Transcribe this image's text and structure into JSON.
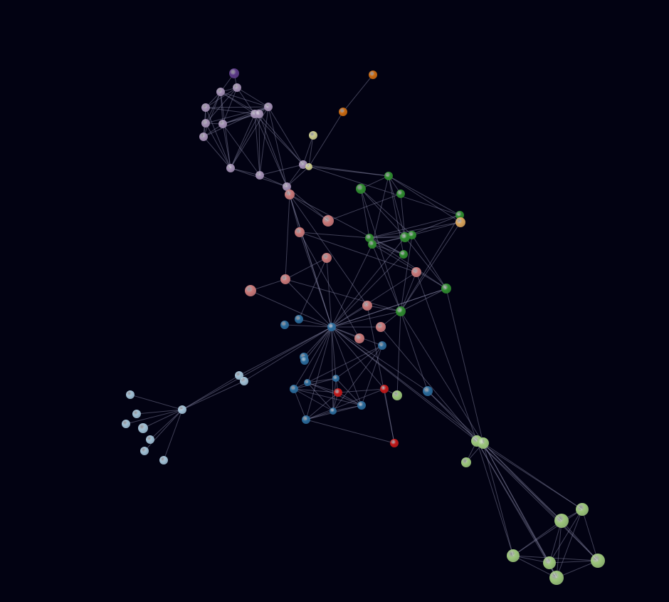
{
  "colors": {
    "background": "#020212",
    "edge": "#8a8aa8",
    "groups": {
      "lavender": "#a28fb3",
      "purple": "#5b3a86",
      "orange": "#c8680f",
      "yellow": "#c9c98a",
      "salmon": "#c87878",
      "green": "#2e8a2e",
      "tan": "#d7a25a",
      "blue": "#2a6a9a",
      "red": "#c01818",
      "lime": "#9bc57a",
      "lightblue": "#9fbfd4"
    }
  },
  "graph": {
    "nodes": [
      {
        "id": 0,
        "group": "purple"
      },
      {
        "id": 1,
        "group": "lavender"
      },
      {
        "id": 2,
        "group": "lavender"
      },
      {
        "id": 3,
        "group": "lavender"
      },
      {
        "id": 4,
        "group": "lavender"
      },
      {
        "id": 5,
        "group": "lavender"
      },
      {
        "id": 6,
        "group": "lavender"
      },
      {
        "id": 7,
        "group": "lavender"
      },
      {
        "id": 8,
        "group": "lavender"
      },
      {
        "id": 9,
        "group": "lavender"
      },
      {
        "id": 10,
        "group": "lavender"
      },
      {
        "id": 11,
        "group": "lavender"
      },
      {
        "id": 12,
        "group": "lavender"
      },
      {
        "id": 13,
        "group": "lavender"
      },
      {
        "id": 14,
        "group": "orange"
      },
      {
        "id": 15,
        "group": "orange"
      },
      {
        "id": 16,
        "group": "yellow"
      },
      {
        "id": 17,
        "group": "yellow"
      },
      {
        "id": 18,
        "group": "salmon"
      },
      {
        "id": 19,
        "group": "green"
      },
      {
        "id": 20,
        "group": "green"
      },
      {
        "id": 21,
        "group": "green"
      },
      {
        "id": 22,
        "group": "salmon"
      },
      {
        "id": 23,
        "group": "salmon"
      },
      {
        "id": 24,
        "group": "green"
      },
      {
        "id": 25,
        "group": "tan"
      },
      {
        "id": 26,
        "group": "green"
      },
      {
        "id": 27,
        "group": "green"
      },
      {
        "id": 28,
        "group": "green"
      },
      {
        "id": 29,
        "group": "green"
      },
      {
        "id": 30,
        "group": "green"
      },
      {
        "id": 31,
        "group": "salmon"
      },
      {
        "id": 32,
        "group": "salmon"
      },
      {
        "id": 33,
        "group": "salmon"
      },
      {
        "id": 34,
        "group": "salmon"
      },
      {
        "id": 35,
        "group": "green"
      },
      {
        "id": 36,
        "group": "salmon"
      },
      {
        "id": 37,
        "group": "green"
      },
      {
        "id": 38,
        "group": "salmon"
      },
      {
        "id": 39,
        "group": "salmon"
      },
      {
        "id": 40,
        "group": "blue"
      },
      {
        "id": 41,
        "group": "blue"
      },
      {
        "id": 42,
        "group": "blue"
      },
      {
        "id": 43,
        "group": "blue"
      },
      {
        "id": 44,
        "group": "blue"
      },
      {
        "id": 45,
        "group": "blue"
      },
      {
        "id": 46,
        "group": "blue"
      },
      {
        "id": 47,
        "group": "blue"
      },
      {
        "id": 48,
        "group": "blue"
      },
      {
        "id": 49,
        "group": "red"
      },
      {
        "id": 50,
        "group": "red"
      },
      {
        "id": 51,
        "group": "lime"
      },
      {
        "id": 52,
        "group": "blue"
      },
      {
        "id": 53,
        "group": "blue"
      },
      {
        "id": 54,
        "group": "blue"
      },
      {
        "id": 55,
        "group": "blue"
      },
      {
        "id": 56,
        "group": "red"
      },
      {
        "id": 57,
        "group": "lightblue"
      },
      {
        "id": 58,
        "group": "lightblue"
      },
      {
        "id": 59,
        "group": "lightblue"
      },
      {
        "id": 60,
        "group": "lightblue"
      },
      {
        "id": 61,
        "group": "lightblue"
      },
      {
        "id": 62,
        "group": "lightblue"
      },
      {
        "id": 63,
        "group": "lightblue"
      },
      {
        "id": 64,
        "group": "lightblue"
      },
      {
        "id": 65,
        "group": "lightblue"
      },
      {
        "id": 66,
        "group": "lightblue"
      },
      {
        "id": 67,
        "group": "lime"
      },
      {
        "id": 68,
        "group": "lime"
      },
      {
        "id": 69,
        "group": "lime"
      },
      {
        "id": 70,
        "group": "lime"
      },
      {
        "id": 71,
        "group": "lime"
      },
      {
        "id": 72,
        "group": "lime"
      },
      {
        "id": 73,
        "group": "lime"
      },
      {
        "id": 74,
        "group": "lime"
      },
      {
        "id": 75,
        "group": "lime"
      }
    ],
    "edges": [
      [
        0,
        1
      ],
      [
        0,
        2
      ],
      [
        1,
        2
      ],
      [
        1,
        3
      ],
      [
        1,
        4
      ],
      [
        1,
        6
      ],
      [
        1,
        7
      ],
      [
        1,
        9
      ],
      [
        2,
        3
      ],
      [
        2,
        4
      ],
      [
        2,
        5
      ],
      [
        2,
        6
      ],
      [
        2,
        7
      ],
      [
        2,
        8
      ],
      [
        2,
        9
      ],
      [
        2,
        10
      ],
      [
        3,
        4
      ],
      [
        3,
        5
      ],
      [
        3,
        7
      ],
      [
        3,
        9
      ],
      [
        3,
        10
      ],
      [
        4,
        5
      ],
      [
        4,
        6
      ],
      [
        4,
        9
      ],
      [
        4,
        10
      ],
      [
        5,
        6
      ],
      [
        5,
        9
      ],
      [
        5,
        10
      ],
      [
        6,
        7
      ],
      [
        6,
        8
      ],
      [
        6,
        9
      ],
      [
        6,
        10
      ],
      [
        6,
        11
      ],
      [
        7,
        8
      ],
      [
        7,
        9
      ],
      [
        7,
        10
      ],
      [
        7,
        11
      ],
      [
        7,
        12
      ],
      [
        7,
        13
      ],
      [
        8,
        9
      ],
      [
        8,
        10
      ],
      [
        8,
        11
      ],
      [
        8,
        12
      ],
      [
        8,
        13
      ],
      [
        9,
        10
      ],
      [
        9,
        11
      ],
      [
        9,
        12
      ],
      [
        9,
        13
      ],
      [
        10,
        11
      ],
      [
        10,
        12
      ],
      [
        11,
        12
      ],
      [
        11,
        13
      ],
      [
        12,
        13
      ],
      [
        12,
        18
      ],
      [
        13,
        17
      ],
      [
        13,
        19
      ],
      [
        13,
        24
      ],
      [
        12,
        22
      ],
      [
        12,
        44
      ],
      [
        14,
        15
      ],
      [
        15,
        17
      ],
      [
        16,
        17
      ],
      [
        16,
        13
      ],
      [
        17,
        19
      ],
      [
        17,
        12
      ],
      [
        18,
        22
      ],
      [
        18,
        23
      ],
      [
        18,
        34
      ],
      [
        18,
        44
      ],
      [
        18,
        36
      ],
      [
        18,
        30
      ],
      [
        19,
        20
      ],
      [
        19,
        21
      ],
      [
        19,
        27
      ],
      [
        19,
        29
      ],
      [
        19,
        30
      ],
      [
        19,
        24
      ],
      [
        19,
        25
      ],
      [
        20,
        27
      ],
      [
        20,
        26
      ],
      [
        20,
        28
      ],
      [
        20,
        35
      ],
      [
        21,
        22
      ],
      [
        21,
        27
      ],
      [
        23,
        39
      ],
      [
        23,
        44
      ],
      [
        23,
        32
      ],
      [
        23,
        26
      ],
      [
        24,
        25
      ],
      [
        24,
        27
      ],
      [
        24,
        35
      ],
      [
        24,
        26
      ],
      [
        25,
        26
      ],
      [
        25,
        28
      ],
      [
        25,
        35
      ],
      [
        26,
        27
      ],
      [
        26,
        28
      ],
      [
        26,
        29
      ],
      [
        26,
        30
      ],
      [
        26,
        37
      ],
      [
        27,
        28
      ],
      [
        27,
        29
      ],
      [
        27,
        44
      ],
      [
        27,
        37
      ],
      [
        28,
        29
      ],
      [
        28,
        35
      ],
      [
        28,
        37
      ],
      [
        29,
        30
      ],
      [
        29,
        35
      ],
      [
        29,
        37
      ],
      [
        29,
        44
      ],
      [
        31,
        44
      ],
      [
        31,
        34
      ],
      [
        31,
        41
      ],
      [
        32,
        35
      ],
      [
        32,
        44
      ],
      [
        32,
        67
      ],
      [
        33,
        34
      ],
      [
        33,
        44
      ],
      [
        34,
        44
      ],
      [
        34,
        35
      ],
      [
        35,
        37
      ],
      [
        35,
        44
      ],
      [
        35,
        51
      ],
      [
        35,
        38
      ],
      [
        35,
        36
      ],
      [
        35,
        55
      ],
      [
        35,
        68
      ],
      [
        36,
        44
      ],
      [
        36,
        56
      ],
      [
        37,
        44
      ],
      [
        38,
        44
      ],
      [
        38,
        67
      ],
      [
        39,
        44
      ],
      [
        40,
        44
      ],
      [
        41,
        44
      ],
      [
        42,
        44
      ],
      [
        43,
        44
      ],
      [
        44,
        45
      ],
      [
        44,
        46
      ],
      [
        44,
        47
      ],
      [
        44,
        48
      ],
      [
        44,
        50
      ],
      [
        44,
        52
      ],
      [
        44,
        53
      ],
      [
        44,
        54
      ],
      [
        44,
        55
      ],
      [
        44,
        57
      ],
      [
        44,
        58
      ],
      [
        44,
        59
      ],
      [
        44,
        67
      ],
      [
        44,
        68
      ],
      [
        44,
        37
      ],
      [
        44,
        30
      ],
      [
        45,
        46
      ],
      [
        45,
        47
      ],
      [
        45,
        48
      ],
      [
        45,
        49
      ],
      [
        45,
        52
      ],
      [
        45,
        53
      ],
      [
        46,
        47
      ],
      [
        46,
        48
      ],
      [
        46,
        49
      ],
      [
        46,
        52
      ],
      [
        46,
        53
      ],
      [
        47,
        48
      ],
      [
        47,
        49
      ],
      [
        47,
        53
      ],
      [
        47,
        54
      ],
      [
        48,
        49
      ],
      [
        48,
        52
      ],
      [
        48,
        53
      ],
      [
        48,
        54
      ],
      [
        49,
        50
      ],
      [
        49,
        53
      ],
      [
        49,
        54
      ],
      [
        50,
        51
      ],
      [
        50,
        54
      ],
      [
        50,
        56
      ],
      [
        52,
        53
      ],
      [
        53,
        54
      ],
      [
        54,
        56
      ],
      [
        55,
        67
      ],
      [
        55,
        68
      ],
      [
        37,
        68
      ],
      [
        57,
        58
      ],
      [
        57,
        59
      ],
      [
        58,
        59
      ],
      [
        59,
        60
      ],
      [
        59,
        61
      ],
      [
        59,
        62
      ],
      [
        59,
        63
      ],
      [
        59,
        64
      ],
      [
        59,
        65
      ],
      [
        59,
        66
      ],
      [
        67,
        68
      ],
      [
        67,
        69
      ],
      [
        67,
        70
      ],
      [
        67,
        71
      ],
      [
        67,
        72
      ],
      [
        67,
        73
      ],
      [
        67,
        74
      ],
      [
        67,
        75
      ],
      [
        68,
        69
      ],
      [
        68,
        70
      ],
      [
        68,
        71
      ],
      [
        68,
        72
      ],
      [
        68,
        73
      ],
      [
        68,
        74
      ],
      [
        68,
        75
      ],
      [
        70,
        71
      ],
      [
        70,
        72
      ],
      [
        70,
        73
      ],
      [
        70,
        74
      ],
      [
        70,
        75
      ],
      [
        71,
        72
      ],
      [
        71,
        73
      ],
      [
        71,
        74
      ],
      [
        71,
        75
      ],
      [
        72,
        73
      ],
      [
        72,
        74
      ],
      [
        72,
        75
      ],
      [
        73,
        74
      ],
      [
        73,
        75
      ],
      [
        74,
        75
      ]
    ]
  }
}
